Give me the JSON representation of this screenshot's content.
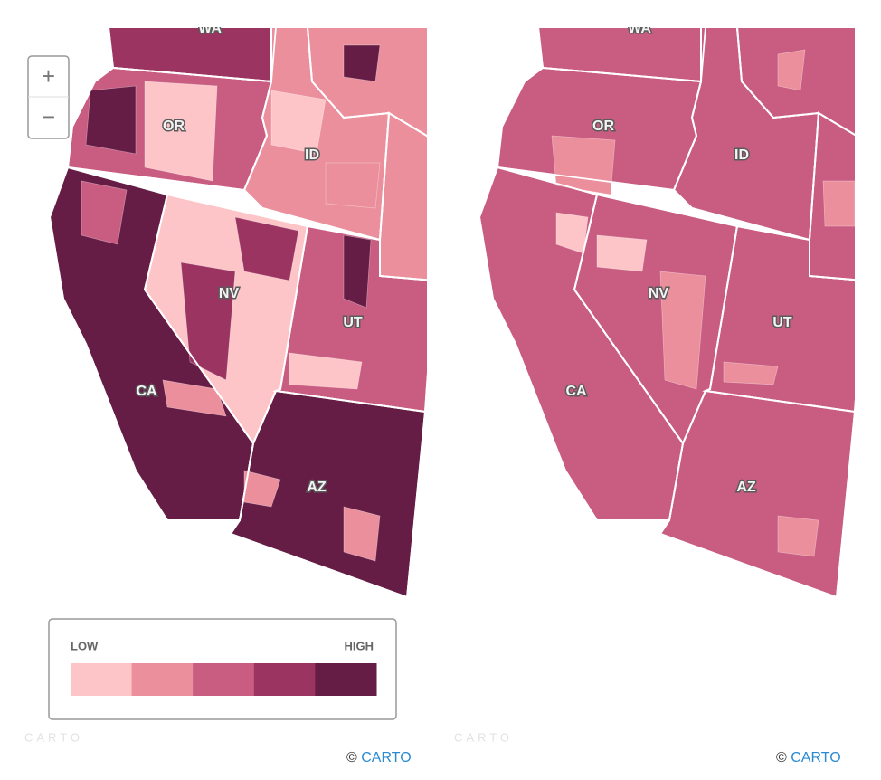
{
  "maps": [
    {
      "labels": [
        "WA",
        "OR",
        "ID",
        "NV",
        "UT",
        "CA",
        "AZ"
      ],
      "zoom": [
        "+",
        "−"
      ],
      "legend": {
        "low": "LOW",
        "high": "HIGH",
        "colors": [
          "#fdc5c8",
          "#eb8f9c",
          "#c95c81",
          "#9b3461",
          "#651c45"
        ]
      },
      "watermark": "CARTO",
      "attribution": {
        "symbol": "©",
        "link": "CARTO"
      }
    },
    {
      "labels": [
        "WA",
        "OR",
        "ID",
        "NV",
        "UT",
        "CA",
        "AZ"
      ],
      "watermark": "CARTO",
      "attribution": {
        "symbol": "©",
        "link": "CARTO"
      }
    }
  ]
}
